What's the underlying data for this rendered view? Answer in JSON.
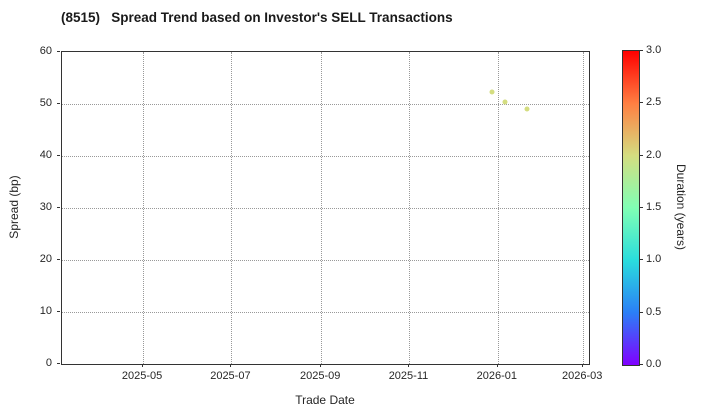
{
  "figure": {
    "background": "#ffffff"
  },
  "chart_data": {
    "type": "scatter",
    "title": "(8515)   Spread Trend based on Investor's SELL Transactions",
    "xlabel": "Trade Date",
    "ylabel": "Spread (bp)",
    "x_domain": [
      "2025-03-06",
      "2026-03-05"
    ],
    "x_ticks": [
      {
        "value": "2025-05-01",
        "label": "2025-05"
      },
      {
        "value": "2025-07-01",
        "label": "2025-07"
      },
      {
        "value": "2025-09-01",
        "label": "2025-09"
      },
      {
        "value": "2025-11-01",
        "label": "2025-11"
      },
      {
        "value": "2026-01-01",
        "label": "2026-01"
      },
      {
        "value": "2026-03-01",
        "label": "2026-03"
      }
    ],
    "ylim": [
      0,
      60
    ],
    "y_ticks": [
      0,
      10,
      20,
      30,
      40,
      50,
      60
    ],
    "grid": true,
    "points": [
      {
        "date": "2025-12-28",
        "spread": 52.4,
        "duration": 2.0
      },
      {
        "date": "2026-01-06",
        "spread": 50.3,
        "duration": 2.0
      },
      {
        "date": "2026-01-21",
        "spread": 49.0,
        "duration": 2.0
      }
    ],
    "colorbar": {
      "label": "Duration (years)",
      "min": 0.0,
      "max": 3.0,
      "tick_labels": [
        "0.0",
        "0.5",
        "1.0",
        "1.5",
        "2.0",
        "2.5",
        "3.0"
      ],
      "colormap": "rainbow"
    },
    "colors": {
      "point": "#d4dd80",
      "grid": "#999999",
      "spine": "#333333",
      "text": "#262626"
    }
  }
}
